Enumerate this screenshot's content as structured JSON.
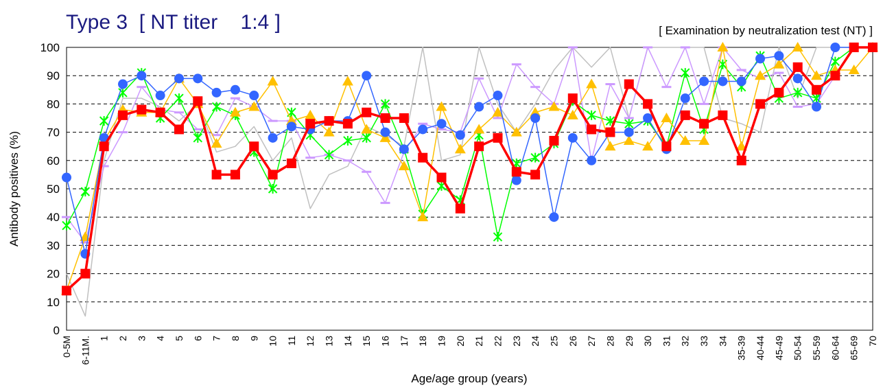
{
  "chart_data": {
    "type": "line",
    "title": "Type 3  [ NT titer    1:4 ]",
    "subtitle": "[ Examination by neutralization test (NT) ]",
    "x_label": "Age/age group (years)",
    "y_label": "Antibody positives (%)",
    "categories": [
      "0-5M",
      "6-11M.",
      "1",
      "2",
      "3",
      "4",
      "5",
      "6",
      "7",
      "8",
      "9",
      "10",
      "11",
      "12",
      "13",
      "14",
      "15",
      "16",
      "17",
      "18",
      "19",
      "20",
      "21",
      "22",
      "23",
      "24",
      "25",
      "26",
      "27",
      "28",
      "29",
      "30",
      "31",
      "32",
      "33",
      "34",
      "35-39",
      "40-44",
      "45-49",
      "50-54",
      "55-59",
      "60-64",
      "65-69",
      "70"
    ],
    "ylim": [
      0,
      100
    ],
    "yticks": [
      0,
      10,
      20,
      30,
      40,
      50,
      60,
      70,
      80,
      90,
      100
    ],
    "grid": true,
    "series": [
      {
        "color": "#c0c0c0",
        "marker": "none",
        "width": 1.5,
        "values": [
          20,
          5,
          60,
          82,
          82,
          79,
          74,
          80,
          63,
          65,
          72,
          60,
          68,
          43,
          55,
          58,
          72,
          69,
          65,
          100,
          60,
          62,
          100,
          80,
          70,
          80,
          92,
          100,
          93,
          100,
          75,
          100,
          100,
          100,
          100,
          75,
          73,
          70,
          100,
          82,
          100,
          100,
          100,
          100
        ]
      },
      {
        "color": "#cc99ff",
        "marker": "dash",
        "width": 1.5,
        "values": [
          40,
          31,
          58,
          70,
          86,
          78,
          77,
          71,
          69,
          82,
          79,
          74,
          74,
          61,
          62,
          60,
          56,
          45,
          63,
          73,
          71,
          70,
          89,
          75,
          94,
          86,
          80,
          100,
          60,
          87,
          75,
          100,
          86,
          100,
          80,
          100,
          92,
          89,
          91,
          79,
          80,
          90,
          100,
          100
        ]
      },
      {
        "color": "#00ff00",
        "marker": "asterisk",
        "width": 1.5,
        "values": [
          37,
          49,
          74,
          84,
          91,
          75,
          82,
          68,
          79,
          76,
          63,
          50,
          77,
          69,
          62,
          67,
          68,
          80,
          64,
          41,
          51,
          46,
          69,
          33,
          59,
          61,
          66,
          81,
          76,
          74,
          73,
          74,
          65,
          91,
          71,
          94,
          86,
          97,
          82,
          84,
          82,
          95,
          100,
          100
        ]
      },
      {
        "color": "#ffc000",
        "marker": "triangle",
        "width": 1.5,
        "values": [
          14,
          33,
          67,
          78,
          77,
          77,
          89,
          80,
          66,
          77,
          79,
          88,
          74,
          76,
          70,
          88,
          71,
          68,
          58,
          40,
          79,
          64,
          71,
          77,
          70,
          77,
          79,
          76,
          87,
          65,
          67,
          65,
          75,
          67,
          67,
          100,
          65,
          90,
          94,
          100,
          90,
          92,
          92,
          100
        ]
      },
      {
        "color": "#3366ff",
        "marker": "circle",
        "width": 1.5,
        "values": [
          54,
          27,
          68,
          87,
          90,
          83,
          89,
          89,
          84,
          85,
          83,
          68,
          72,
          71,
          74,
          74,
          90,
          70,
          64,
          71,
          73,
          69,
          79,
          83,
          53,
          75,
          40,
          68,
          60,
          70,
          70,
          75,
          64,
          82,
          88,
          88,
          88,
          96,
          97,
          89,
          79,
          100,
          100,
          100
        ]
      },
      {
        "color": "#ff0000",
        "marker": "square",
        "width": 3.5,
        "values": [
          14,
          20,
          65,
          76,
          78,
          77,
          71,
          81,
          55,
          55,
          65,
          55,
          59,
          73,
          74,
          73,
          77,
          75,
          75,
          61,
          54,
          43,
          65,
          68,
          56,
          55,
          67,
          82,
          71,
          70,
          87,
          80,
          65,
          76,
          73,
          76,
          60,
          80,
          84,
          93,
          85,
          90,
          100,
          100
        ]
      }
    ]
  }
}
